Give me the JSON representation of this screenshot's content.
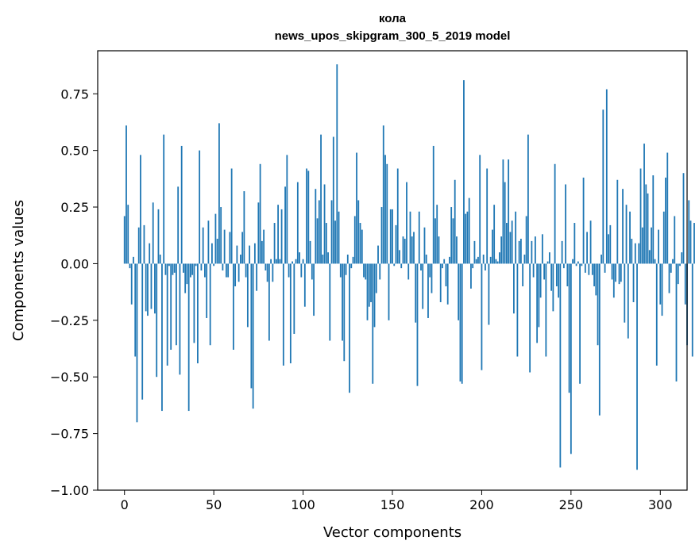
{
  "chart_data": {
    "type": "bar",
    "title": "кола",
    "subtitle": "news_upos_skipgram_300_5_2019 model",
    "xlabel": "Vector components",
    "ylabel": "Components values",
    "xlim": [
      -15,
      315
    ],
    "ylim": [
      -1.0,
      0.94
    ],
    "xticks": [
      0,
      50,
      100,
      150,
      200,
      250,
      300
    ],
    "yticks": [
      -1.0,
      -0.75,
      -0.5,
      -0.25,
      0.0,
      0.25,
      0.5,
      0.75
    ],
    "ytick_labels": [
      "−1.00",
      "−0.75",
      "−0.50",
      "−0.25",
      "0.00",
      "0.25",
      "0.50",
      "0.75"
    ],
    "bar_color": "#1f77b4",
    "values": [
      0.21,
      0.61,
      0.26,
      -0.02,
      -0.18,
      0.03,
      -0.41,
      -0.7,
      0.16,
      0.48,
      -0.6,
      0.17,
      -0.21,
      -0.23,
      0.09,
      -0.2,
      0.27,
      -0.22,
      -0.5,
      0.24,
      0.04,
      -0.65,
      0.57,
      -0.05,
      -0.45,
      -0.01,
      -0.38,
      -0.05,
      -0.04,
      -0.36,
      0.34,
      -0.49,
      0.52,
      -0.04,
      -0.13,
      -0.09,
      -0.65,
      -0.06,
      -0.05,
      -0.35,
      -0.01,
      -0.44,
      0.5,
      -0.03,
      0.16,
      -0.06,
      -0.24,
      0.19,
      -0.36,
      0.09,
      -0.01,
      0.22,
      0.11,
      0.62,
      0.25,
      -0.03,
      0.15,
      -0.06,
      -0.06,
      0.14,
      0.42,
      -0.38,
      -0.1,
      0.08,
      -0.08,
      0.04,
      0.14,
      0.32,
      -0.06,
      -0.28,
      0.08,
      -0.55,
      -0.64,
      0.09,
      -0.12,
      0.27,
      0.44,
      0.1,
      0.15,
      -0.03,
      -0.08,
      -0.34,
      0.02,
      -0.08,
      0.18,
      0.02,
      0.26,
      0.02,
      0.24,
      -0.45,
      0.34,
      0.48,
      -0.06,
      -0.44,
      0.01,
      -0.31,
      0.02,
      0.36,
      0.05,
      -0.06,
      0.02,
      -0.19,
      0.42,
      0.41,
      0.1,
      -0.07,
      -0.23,
      0.33,
      0.2,
      0.28,
      0.57,
      0.04,
      0.35,
      0.18,
      0.05,
      -0.34,
      0.28,
      0.56,
      0.19,
      0.88,
      0.23,
      -0.06,
      -0.34,
      -0.43,
      -0.05,
      0.04,
      -0.57,
      -0.02,
      0.03,
      0.21,
      0.49,
      0.28,
      0.18,
      0.15,
      -0.06,
      -0.07,
      -0.25,
      -0.19,
      -0.17,
      -0.53,
      -0.28,
      -0.13,
      0.08,
      -0.07,
      0.25,
      0.61,
      0.48,
      0.44,
      -0.25,
      0.24,
      0.24,
      -0.01,
      0.17,
      0.42,
      0.06,
      -0.02,
      0.12,
      0.11,
      0.36,
      -0.07,
      0.23,
      0.12,
      0.14,
      -0.26,
      -0.54,
      0.23,
      -0.03,
      -0.2,
      0.16,
      0.04,
      -0.24,
      -0.06,
      -0.13,
      0.52,
      0.2,
      0.26,
      0.12,
      -0.17,
      -0.02,
      0.02,
      -0.1,
      -0.18,
      0.03,
      0.25,
      0.2,
      0.37,
      0.12,
      -0.25,
      -0.52,
      -0.53,
      0.81,
      0.22,
      0.23,
      0.29,
      -0.11,
      -0.02,
      0.1,
      0.02,
      0.03,
      0.48,
      -0.47,
      0.04,
      -0.03,
      0.42,
      -0.27,
      0.03,
      0.15,
      0.26,
      0.02,
      0.01,
      0.05,
      0.12,
      0.46,
      0.36,
      0.18,
      0.46,
      0.14,
      0.19,
      -0.22,
      0.23,
      -0.41,
      0.1,
      0.11,
      -0.1,
      0.04,
      0.21,
      0.57,
      -0.48,
      0.1,
      -0.06,
      0.12,
      -0.35,
      -0.28,
      -0.15,
      0.13,
      -0.07,
      -0.41,
      0.01,
      0.05,
      -0.12,
      -0.21,
      0.44,
      -0.1,
      -0.15,
      -0.9,
      0.1,
      -0.02,
      0.35,
      -0.1,
      -0.57,
      -0.84,
      0.02,
      0.18,
      -0.01,
      0.01,
      -0.53,
      -0.01,
      0.38,
      -0.04,
      0.14,
      -0.05,
      0.19,
      -0.05,
      -0.1,
      -0.14,
      -0.36,
      -0.67,
      0.04,
      0.68,
      -0.04,
      0.77,
      0.13,
      0.17,
      -0.07,
      -0.15,
      -0.08,
      0.37,
      -0.09,
      -0.08,
      0.33,
      -0.26,
      0.26,
      -0.33,
      0.23,
      0.11,
      -0.17,
      0.09,
      -0.91,
      0.09,
      0.42,
      0.16,
      0.53,
      0.35,
      0.31,
      0.06,
      0.16,
      0.39,
      0.02,
      -0.45,
      0.15,
      -0.18,
      -0.23,
      0.23,
      0.38,
      0.49,
      -0.13,
      -0.04,
      0.02,
      0.21,
      -0.52,
      -0.09,
      -0.01,
      0.05,
      0.4,
      -0.18,
      -0.36,
      0.28,
      0.19,
      -0.41,
      0.18
    ]
  }
}
